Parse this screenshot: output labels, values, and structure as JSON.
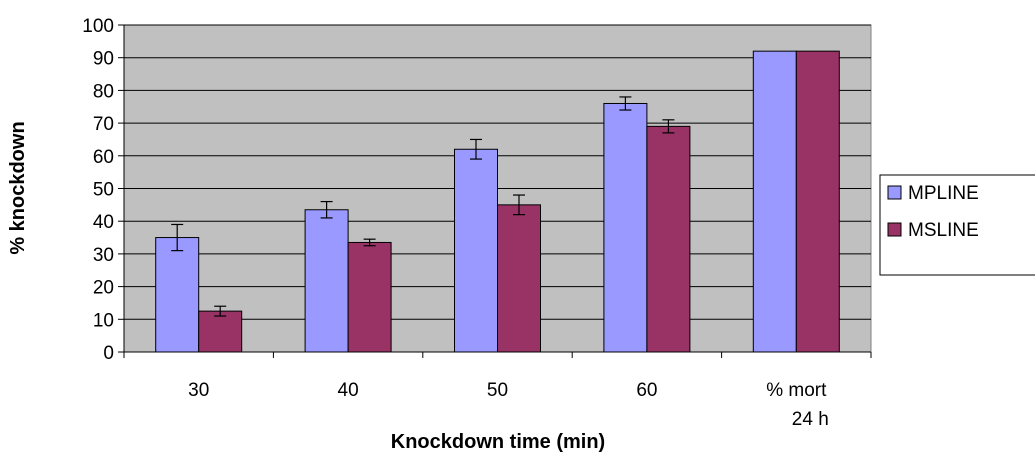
{
  "chart_data": {
    "type": "bar",
    "xlabel": "Knockdown time (min)",
    "ylabel": "% knockdown",
    "ylim": [
      0,
      100
    ],
    "yticks": [
      0,
      10,
      20,
      30,
      40,
      50,
      60,
      70,
      80,
      90,
      100
    ],
    "categories": [
      [
        "30"
      ],
      [
        "40"
      ],
      [
        "50"
      ],
      [
        "60"
      ],
      [
        "% mort",
        "24 h"
      ]
    ],
    "series": [
      {
        "name": "MPLINE",
        "color": "#9999ff",
        "values": [
          35,
          43.5,
          62,
          76,
          92
        ],
        "errors": [
          4,
          2.5,
          3,
          2,
          null
        ]
      },
      {
        "name": "MSLINE",
        "color": "#993366",
        "values": [
          12.5,
          33.5,
          45,
          69,
          92
        ],
        "errors": [
          1.5,
          1,
          3,
          2,
          null
        ]
      }
    ],
    "grid": true,
    "plot_background": "#c0c0c0",
    "legend_position": "right"
  }
}
